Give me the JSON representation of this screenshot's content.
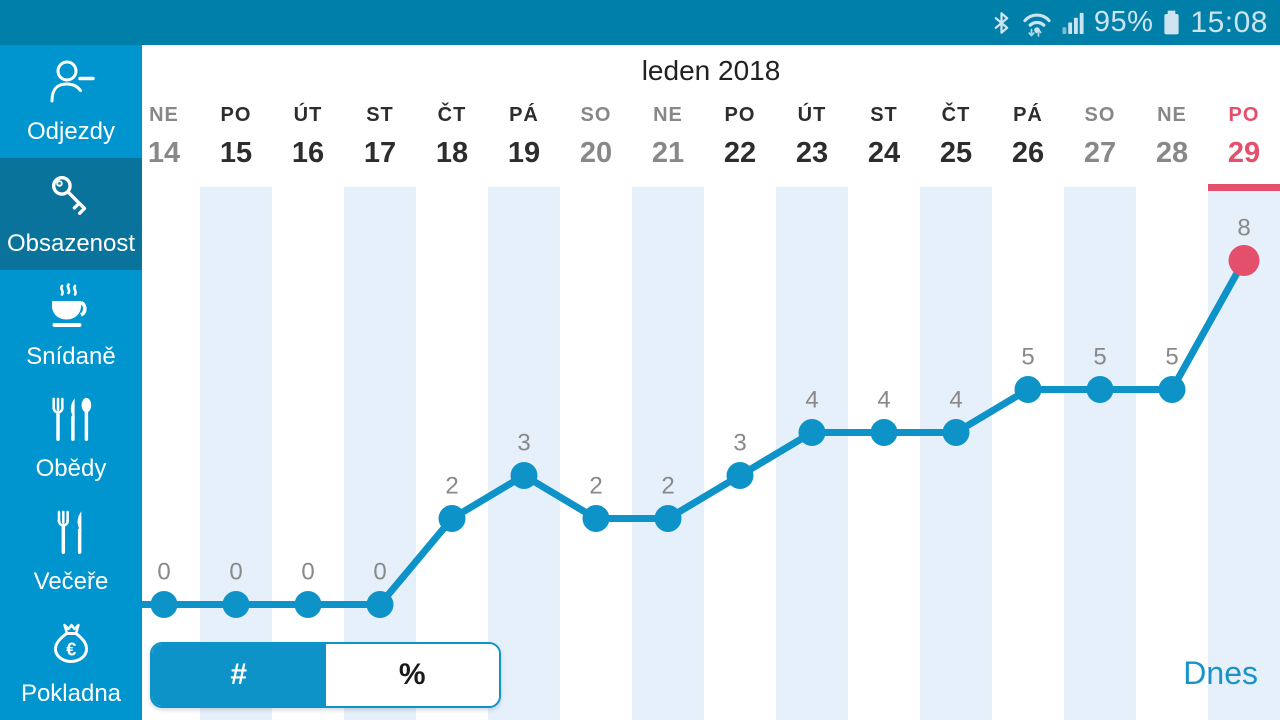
{
  "colors": {
    "status_bar_bg": "#007fa9",
    "status_bar_fg": "#cde4f0",
    "sidebar_bg": "#0095ce",
    "sidebar_selected_bg": "#09739c",
    "main_bg": "#ffffff",
    "band": "#e6f0fa",
    "line": "#0d93c8",
    "point": "#0d93c8",
    "today_accent": "#e44f6c",
    "weekday_text": "#2d2d2d",
    "weekend_text": "#888888",
    "value_label": "#898989",
    "title_text": "#212121",
    "dnes_text": "#1a93c9",
    "toggle_border": "#0d93c8",
    "toggle_selected_bg": "#0d93c8",
    "toggle_selected_fg": "#ffffff",
    "toggle_unselected_bg": "#ffffff",
    "toggle_unselected_fg": "#1a1a1a"
  },
  "status_bar": {
    "battery_percent": "95%",
    "time": "15:08",
    "icons": [
      "bluetooth-icon",
      "wifi-icon",
      "signal-icon",
      "battery-icon"
    ]
  },
  "sidebar": {
    "items": [
      {
        "label": "Odjezdy",
        "icon": "person-departure-icon",
        "selected": false
      },
      {
        "label": "Obsazenost",
        "icon": "key-icon",
        "selected": true
      },
      {
        "label": "Snídaně",
        "icon": "coffee-cup-icon",
        "selected": false
      },
      {
        "label": "Obědy",
        "icon": "cutlery-icon",
        "selected": false
      },
      {
        "label": "Večeře",
        "icon": "fork-knife-icon",
        "selected": false
      },
      {
        "label": "Pokladna",
        "icon": "money-bag-icon",
        "selected": false
      }
    ]
  },
  "header": {
    "title": "leden 2018"
  },
  "chart_data": {
    "type": "line",
    "title": "leden 2018",
    "xlabel": "",
    "ylabel": "",
    "ylim": [
      0,
      9
    ],
    "legend": "none",
    "grid": "alternating light-blue column bands on odd columns",
    "today_index": 15,
    "x": [
      {
        "weekday": "NE",
        "day": "14",
        "weekend": true,
        "today": false,
        "band": false
      },
      {
        "weekday": "PO",
        "day": "15",
        "weekend": false,
        "today": false,
        "band": true
      },
      {
        "weekday": "ÚT",
        "day": "16",
        "weekend": false,
        "today": false,
        "band": false
      },
      {
        "weekday": "ST",
        "day": "17",
        "weekend": false,
        "today": false,
        "band": true
      },
      {
        "weekday": "ČT",
        "day": "18",
        "weekend": false,
        "today": false,
        "band": false
      },
      {
        "weekday": "PÁ",
        "day": "19",
        "weekend": false,
        "today": false,
        "band": true
      },
      {
        "weekday": "SO",
        "day": "20",
        "weekend": true,
        "today": false,
        "band": false
      },
      {
        "weekday": "NE",
        "day": "21",
        "weekend": true,
        "today": false,
        "band": true
      },
      {
        "weekday": "PO",
        "day": "22",
        "weekend": false,
        "today": false,
        "band": false
      },
      {
        "weekday": "ÚT",
        "day": "23",
        "weekend": false,
        "today": false,
        "band": true
      },
      {
        "weekday": "ST",
        "day": "24",
        "weekend": false,
        "today": false,
        "band": false
      },
      {
        "weekday": "ČT",
        "day": "25",
        "weekend": false,
        "today": false,
        "band": true
      },
      {
        "weekday": "PÁ",
        "day": "26",
        "weekend": false,
        "today": false,
        "band": false
      },
      {
        "weekday": "SO",
        "day": "27",
        "weekend": true,
        "today": false,
        "band": true
      },
      {
        "weekday": "NE",
        "day": "28",
        "weekend": true,
        "today": false,
        "band": false
      },
      {
        "weekday": "PO",
        "day": "29",
        "weekend": false,
        "today": true,
        "band": true
      }
    ],
    "values": [
      0,
      0,
      0,
      0,
      2,
      3,
      2,
      2,
      3,
      4,
      4,
      4,
      5,
      5,
      5,
      8
    ]
  },
  "footer": {
    "unit_toggle": {
      "options": [
        "#",
        "%"
      ],
      "selected": "#"
    },
    "today_label": "Dnes"
  }
}
